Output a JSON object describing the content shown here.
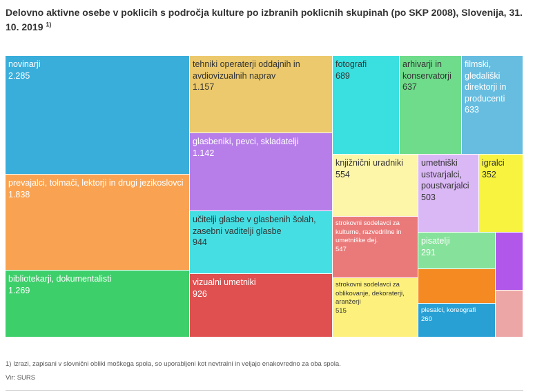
{
  "title": "Delovno aktivne osebe v poklicih s področja kulture po izbranih poklicnih skupinah (po SKP 2008), Slovenija, 31. 10. 2019",
  "title_note": "1)",
  "footnote": "1) Izrazi, zapisani v slovnični obliki moškega spola, so uporabljeni kot nevtralni in veljajo enakovredno za oba spola.",
  "source": "Vir: SURS",
  "chart_data": {
    "type": "treemap",
    "items": [
      {
        "name": "novinarji",
        "value_label": "2.285",
        "value": 2285,
        "color": "#3aaedb",
        "text": "light"
      },
      {
        "name": "prevajalci, tolmači, lektorji in drugi jezikoslovci",
        "value_label": "1.838",
        "value": 1838,
        "color": "#f9a352",
        "text": "light"
      },
      {
        "name": "bibliotekarji, dokumentalisti",
        "value_label": "1.269",
        "value": 1269,
        "color": "#3dcf6a",
        "text": "light"
      },
      {
        "name": "tehniki operaterji oddajnih in avdiovizualnih naprav",
        "value_label": "1.157",
        "value": 1157,
        "color": "#ebc96c",
        "text": "dark"
      },
      {
        "name": "glasbeniki, pevci, skladatelji",
        "value_label": "1.142",
        "value": 1142,
        "color": "#b77eea",
        "text": "light"
      },
      {
        "name": "učitelji glasbe v glasbenih šolah, zasebni vaditelji glasbe",
        "value_label": "944",
        "value": 944,
        "color": "#45dfe3",
        "text": "dark"
      },
      {
        "name": "vizualni umetniki",
        "value_label": "926",
        "value": 926,
        "color": "#e05050",
        "text": "light"
      },
      {
        "name": "fotografi",
        "value_label": "689",
        "value": 689,
        "color": "#3ae0e0",
        "text": "dark"
      },
      {
        "name": "arhivarji in konservatorji",
        "value_label": "637",
        "value": 637,
        "color": "#6fdc8b",
        "text": "dark"
      },
      {
        "name": "filmski, gledališki direktorji in producenti",
        "value_label": "633",
        "value": 633,
        "color": "#66bde0",
        "text": "light"
      },
      {
        "name": "knjižnični uradniki",
        "value_label": "554",
        "value": 554,
        "color": "#fdf5a8",
        "text": "dark"
      },
      {
        "name": "strokovni sodelavci za kulturne, razvedrilne in umetniške dej.",
        "value_label": "547",
        "value": 547,
        "color": "#ea7a7a",
        "text": "light"
      },
      {
        "name": "strokovni sodelavci za oblikovanje, dekoraterji, aranžerji",
        "value_label": "515",
        "value": 515,
        "color": "#fdf07c",
        "text": "dark"
      },
      {
        "name": "umetniški ustvarjalci, poustvarjalci",
        "value_label": "503",
        "value": 503,
        "color": "#dab7f5",
        "text": "dark"
      },
      {
        "name": "igralci",
        "value_label": "352",
        "value": 352,
        "color": "#f7f33e",
        "text": "dark"
      },
      {
        "name": "pisatelji",
        "value_label": "291",
        "value": 291,
        "color": "#86e29a",
        "text": "light"
      },
      {
        "name": "",
        "value_label": "",
        "value": 280,
        "color": "#f58a22",
        "text": "light"
      },
      {
        "name": "plesalci, koreografi",
        "value_label": "260",
        "value": 260,
        "color": "#29a0d4",
        "text": "light"
      },
      {
        "name": "",
        "value_label": "",
        "value": 250,
        "color": "#b157ea",
        "text": "light"
      },
      {
        "name": "",
        "value_label": "",
        "value": 200,
        "color": "#eda6a6",
        "text": "light"
      }
    ]
  }
}
